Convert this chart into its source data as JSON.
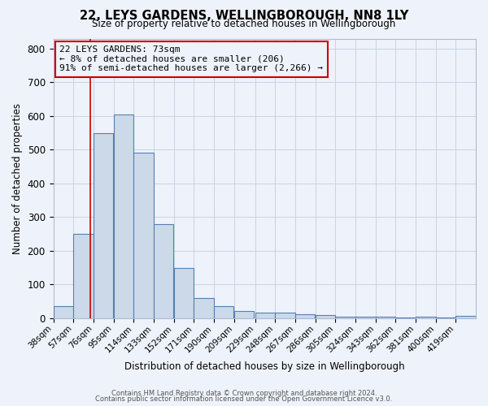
{
  "title": "22, LEYS GARDENS, WELLINGBOROUGH, NN8 1LY",
  "subtitle": "Size of property relative to detached houses in Wellingborough",
  "xlabel": "Distribution of detached houses by size in Wellingborough",
  "ylabel": "Number of detached properties",
  "bin_labels": [
    "38sqm",
    "57sqm",
    "76sqm",
    "95sqm",
    "114sqm",
    "133sqm",
    "152sqm",
    "171sqm",
    "190sqm",
    "209sqm",
    "229sqm",
    "248sqm",
    "267sqm",
    "286sqm",
    "305sqm",
    "324sqm",
    "343sqm",
    "362sqm",
    "381sqm",
    "400sqm",
    "419sqm"
  ],
  "bin_edges": [
    38,
    57,
    76,
    95,
    114,
    133,
    152,
    171,
    190,
    209,
    229,
    248,
    267,
    286,
    305,
    324,
    343,
    362,
    381,
    400,
    419
  ],
  "bar_heights": [
    35,
    250,
    550,
    605,
    490,
    278,
    148,
    60,
    35,
    20,
    15,
    15,
    12,
    8,
    5,
    5,
    3,
    2,
    5,
    1,
    6
  ],
  "bar_facecolor": "#ccd9e8",
  "bar_edgecolor": "#5580b0",
  "property_line_x": 73,
  "property_line_color": "#cc0000",
  "annotation_line1": "22 LEYS GARDENS: 73sqm",
  "annotation_line2": "← 8% of detached houses are smaller (206)",
  "annotation_line3": "91% of semi-detached houses are larger (2,266) →",
  "annotation_box_edgecolor": "#cc0000",
  "ylim": [
    0,
    830
  ],
  "yticks": [
    0,
    100,
    200,
    300,
    400,
    500,
    600,
    700,
    800
  ],
  "grid_color": "#c8d4e4",
  "footer_line1": "Contains HM Land Registry data © Crown copyright and database right 2024.",
  "footer_line2": "Contains public sector information licensed under the Open Government Licence v3.0.",
  "background_color": "#eef2fa",
  "axes_background_color": "#eef2fa"
}
